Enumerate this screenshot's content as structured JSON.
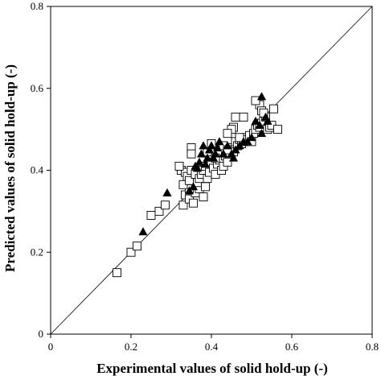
{
  "chart_data": {
    "type": "scatter",
    "title": "",
    "xlabel": "Experimental values of solid hold-up (-)",
    "ylabel": "Predicted values of solid hold-up (-)",
    "xlim": [
      0,
      0.8
    ],
    "ylim": [
      0,
      0.8
    ],
    "xticks": [
      "0",
      "0.2",
      "0.4",
      "0.6",
      "0.8"
    ],
    "yticks": [
      "0",
      "0.2",
      "0.4",
      "0.6",
      "0.8"
    ],
    "grid": false,
    "legend": "none",
    "reference_line": {
      "type": "y=x",
      "from": [
        0,
        0
      ],
      "to": [
        0.8,
        0.8
      ]
    },
    "series": [
      {
        "marker": "open-square",
        "color": "#000000",
        "points": [
          [
            0.165,
            0.15
          ],
          [
            0.2,
            0.2
          ],
          [
            0.215,
            0.215
          ],
          [
            0.25,
            0.29
          ],
          [
            0.27,
            0.3
          ],
          [
            0.285,
            0.315
          ],
          [
            0.33,
            0.315
          ],
          [
            0.335,
            0.34
          ],
          [
            0.345,
            0.33
          ],
          [
            0.355,
            0.32
          ],
          [
            0.36,
            0.345
          ],
          [
            0.37,
            0.355
          ],
          [
            0.38,
            0.335
          ],
          [
            0.345,
            0.355
          ],
          [
            0.33,
            0.365
          ],
          [
            0.325,
            0.4
          ],
          [
            0.335,
            0.395
          ],
          [
            0.34,
            0.385
          ],
          [
            0.345,
            0.375
          ],
          [
            0.35,
            0.4
          ],
          [
            0.36,
            0.39
          ],
          [
            0.365,
            0.37
          ],
          [
            0.37,
            0.38
          ],
          [
            0.375,
            0.39
          ],
          [
            0.38,
            0.4
          ],
          [
            0.385,
            0.41
          ],
          [
            0.39,
            0.38
          ],
          [
            0.395,
            0.395
          ],
          [
            0.4,
            0.42
          ],
          [
            0.405,
            0.405
          ],
          [
            0.41,
            0.39
          ],
          [
            0.415,
            0.415
          ],
          [
            0.42,
            0.425
          ],
          [
            0.425,
            0.4
          ],
          [
            0.43,
            0.41
          ],
          [
            0.435,
            0.435
          ],
          [
            0.44,
            0.42
          ],
          [
            0.445,
            0.44
          ],
          [
            0.45,
            0.455
          ],
          [
            0.455,
            0.445
          ],
          [
            0.46,
            0.47
          ],
          [
            0.465,
            0.46
          ],
          [
            0.47,
            0.475
          ],
          [
            0.475,
            0.465
          ],
          [
            0.48,
            0.47
          ],
          [
            0.485,
            0.48
          ],
          [
            0.49,
            0.475
          ],
          [
            0.495,
            0.485
          ],
          [
            0.5,
            0.47
          ],
          [
            0.505,
            0.49
          ],
          [
            0.51,
            0.5
          ],
          [
            0.515,
            0.51
          ],
          [
            0.52,
            0.505
          ],
          [
            0.525,
            0.515
          ],
          [
            0.53,
            0.52
          ],
          [
            0.535,
            0.53
          ],
          [
            0.54,
            0.5
          ],
          [
            0.545,
            0.505
          ],
          [
            0.55,
            0.51
          ],
          [
            0.555,
            0.55
          ],
          [
            0.565,
            0.5
          ],
          [
            0.52,
            0.56
          ],
          [
            0.525,
            0.545
          ],
          [
            0.53,
            0.54
          ],
          [
            0.51,
            0.57
          ],
          [
            0.46,
            0.53
          ],
          [
            0.455,
            0.505
          ],
          [
            0.45,
            0.5
          ],
          [
            0.44,
            0.49
          ],
          [
            0.47,
            0.48
          ],
          [
            0.48,
            0.53
          ],
          [
            0.35,
            0.455
          ],
          [
            0.32,
            0.41
          ],
          [
            0.35,
            0.44
          ],
          [
            0.385,
            0.36
          ],
          [
            0.39,
            0.445
          ],
          [
            0.4,
            0.465
          ],
          [
            0.43,
            0.46
          ],
          [
            0.44,
            0.45
          ],
          [
            0.41,
            0.43
          ]
        ]
      },
      {
        "marker": "filled-triangle",
        "color": "#000000",
        "points": [
          [
            0.23,
            0.25
          ],
          [
            0.29,
            0.345
          ],
          [
            0.345,
            0.35
          ],
          [
            0.355,
            0.36
          ],
          [
            0.36,
            0.41
          ],
          [
            0.365,
            0.405
          ],
          [
            0.37,
            0.42
          ],
          [
            0.375,
            0.44
          ],
          [
            0.38,
            0.46
          ],
          [
            0.385,
            0.415
          ],
          [
            0.39,
            0.43
          ],
          [
            0.395,
            0.45
          ],
          [
            0.4,
            0.46
          ],
          [
            0.405,
            0.43
          ],
          [
            0.41,
            0.44
          ],
          [
            0.415,
            0.455
          ],
          [
            0.42,
            0.47
          ],
          [
            0.43,
            0.44
          ],
          [
            0.44,
            0.46
          ],
          [
            0.45,
            0.44
          ],
          [
            0.455,
            0.43
          ],
          [
            0.46,
            0.45
          ],
          [
            0.47,
            0.46
          ],
          [
            0.48,
            0.47
          ],
          [
            0.49,
            0.47
          ],
          [
            0.5,
            0.48
          ],
          [
            0.52,
            0.51
          ],
          [
            0.525,
            0.49
          ],
          [
            0.535,
            0.53
          ],
          [
            0.54,
            0.52
          ],
          [
            0.525,
            0.58
          ],
          [
            0.51,
            0.52
          ]
        ]
      }
    ]
  }
}
